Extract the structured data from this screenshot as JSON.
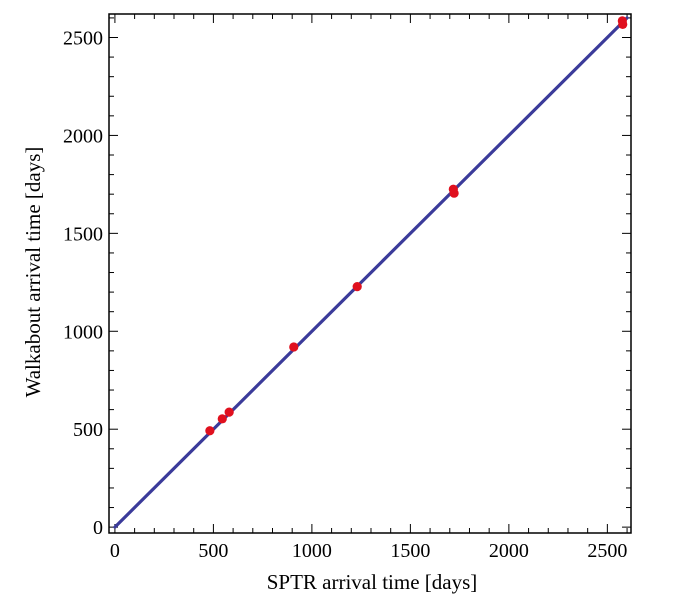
{
  "chart_data": {
    "type": "scatter",
    "title": "",
    "xlabel": "SPTR arrival time [days]",
    "ylabel": "Walkabout arrival time [days]",
    "xlim": [
      -30,
      2620
    ],
    "ylim": [
      -30,
      2620
    ],
    "xticks": [
      0,
      500,
      1000,
      1500,
      2000,
      2500
    ],
    "yticks": [
      0,
      500,
      1000,
      1500,
      2000,
      2500
    ],
    "minor_ticks_per_major": 5,
    "grid": false,
    "legend": "none",
    "colors": {
      "points": "#e0101e",
      "line": "#3b3b9a",
      "frame": "#000000"
    },
    "line": {
      "x": [
        0,
        2600
      ],
      "y": [
        0,
        2600
      ]
    },
    "points": [
      {
        "x": 482,
        "y": 492
      },
      {
        "x": 545,
        "y": 553
      },
      {
        "x": 580,
        "y": 587
      },
      {
        "x": 908,
        "y": 920
      },
      {
        "x": 1230,
        "y": 1228
      },
      {
        "x": 1718,
        "y": 1725
      },
      {
        "x": 1722,
        "y": 1705
      },
      {
        "x": 2576,
        "y": 2585
      },
      {
        "x": 2578,
        "y": 2567
      }
    ]
  }
}
